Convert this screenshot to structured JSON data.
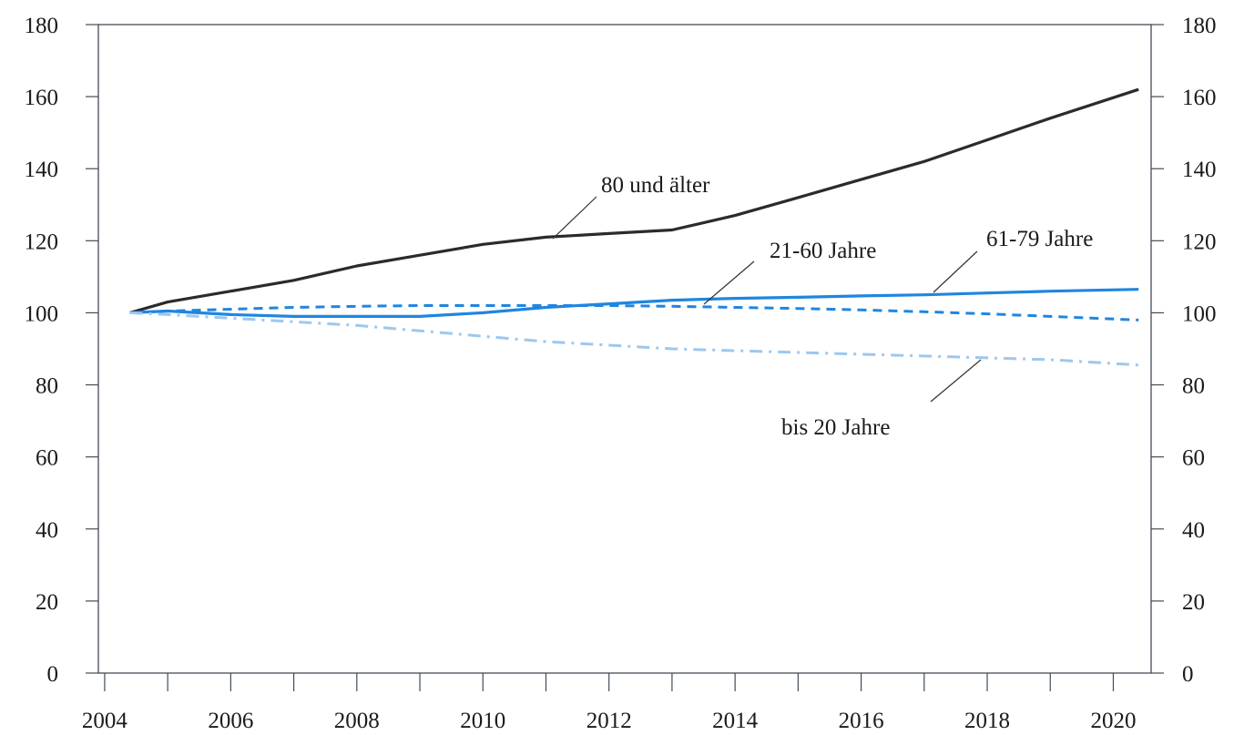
{
  "chart_data": {
    "type": "line",
    "title": "",
    "xlabel": "",
    "ylabel": "",
    "xlim": [
      2003.9,
      2020.6
    ],
    "ylim": [
      0,
      180
    ],
    "x_ticks": [
      "2004",
      "2006",
      "2008",
      "2010",
      "2012",
      "2014",
      "2016",
      "2018",
      "2020"
    ],
    "y_ticks": [
      "0",
      "20",
      "40",
      "60",
      "80",
      "100",
      "120",
      "140",
      "160",
      "180"
    ],
    "grid": false,
    "series": [
      {
        "name": "80 und älter",
        "color": "#2b2b2e",
        "style": "solid",
        "x": [
          2004.4,
          2005,
          2006,
          2007,
          2008,
          2009,
          2010,
          2011,
          2012,
          2013,
          2014,
          2015,
          2016,
          2017,
          2018,
          2019,
          2020.4
        ],
        "y": [
          100,
          103,
          106,
          109,
          113,
          116,
          119,
          121,
          122,
          123,
          127,
          132,
          137,
          142,
          148,
          154,
          162
        ]
      },
      {
        "name": "61-79 Jahre",
        "color": "#1f86e0",
        "style": "solid",
        "x": [
          2004.4,
          2005,
          2006,
          2007,
          2008,
          2009,
          2010,
          2011,
          2012,
          2013,
          2014,
          2015,
          2016,
          2017,
          2018,
          2019,
          2020.4
        ],
        "y": [
          100,
          100.5,
          99.5,
          99,
          99,
          99,
          100,
          101.5,
          102.5,
          103.5,
          104,
          104.3,
          104.7,
          105,
          105.5,
          106,
          106.5
        ]
      },
      {
        "name": "21-60 Jahre",
        "color": "#1f86e0",
        "style": "dashed",
        "x": [
          2004.4,
          2005,
          2006,
          2007,
          2008,
          2009,
          2010,
          2011,
          2012,
          2013,
          2014,
          2015,
          2016,
          2017,
          2018,
          2019,
          2020.4
        ],
        "y": [
          100,
          100.5,
          101,
          101.5,
          101.8,
          102,
          102,
          102,
          102,
          101.8,
          101.5,
          101.2,
          100.8,
          100.3,
          99.7,
          99,
          98
        ]
      },
      {
        "name": "bis 20 Jahre",
        "color": "#9cc8ef",
        "style": "dashdot",
        "x": [
          2004.4,
          2005,
          2006,
          2007,
          2008,
          2009,
          2010,
          2011,
          2012,
          2013,
          2014,
          2015,
          2016,
          2017,
          2018,
          2019,
          2020.4
        ],
        "y": [
          100,
          99.5,
          98.5,
          97.5,
          96.5,
          95,
          93.5,
          92,
          91,
          90,
          89.5,
          89,
          88.5,
          88,
          87.5,
          87,
          85.5
        ]
      }
    ],
    "annotations": [
      {
        "text": "80 und älter",
        "series": "80 und älter"
      },
      {
        "text": "21-60 Jahre",
        "series": "21-60 Jahre"
      },
      {
        "text": "61-79 Jahre",
        "series": "61-79 Jahre"
      },
      {
        "text": "bis 20 Jahre",
        "series": "bis 20 Jahre"
      }
    ]
  }
}
